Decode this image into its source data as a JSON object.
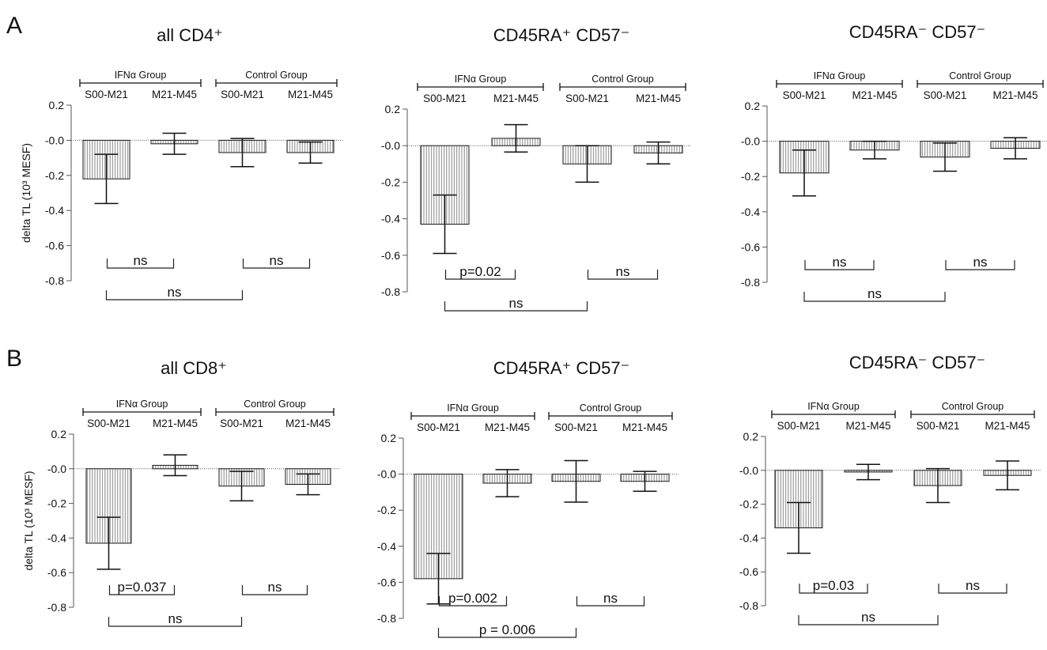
{
  "figure": {
    "panel_labels": [
      "A",
      "B"
    ],
    "y_axis_label": "delta TL (10³ MESF)",
    "group_labels": [
      "IFNα  Group",
      "Control Group"
    ],
    "categories": [
      "S00-M21",
      "M21-M45",
      "S00-M21",
      "M21-M45"
    ]
  },
  "chart_data": [
    {
      "type": "bar",
      "panel": "A",
      "title": "all CD4⁺",
      "categories": [
        "S00-M21",
        "M21-M45",
        "S00-M21",
        "M21-M45"
      ],
      "groups": [
        "IFNα  Group",
        "Control Group"
      ],
      "values": [
        -0.22,
        -0.02,
        -0.07,
        -0.07
      ],
      "errors": [
        0.14,
        0.06,
        0.08,
        0.06
      ],
      "ylabel": "delta TL (10³ MESF)",
      "ylim": [
        -0.8,
        0.2
      ],
      "yticks": [
        "0.2",
        "-0.0",
        "-0.2",
        "-0.4",
        "-0.6",
        "-0.8"
      ],
      "comparisons": [
        {
          "from": 0,
          "to": 1,
          "label": "ns",
          "level": 0
        },
        {
          "from": 2,
          "to": 3,
          "label": "ns",
          "level": 0
        },
        {
          "from": 0,
          "to": 2,
          "label": "ns",
          "level": 1
        }
      ]
    },
    {
      "type": "bar",
      "panel": "A",
      "title": "CD45RA⁺ CD57⁻",
      "categories": [
        "S00-M21",
        "M21-M45",
        "S00-M21",
        "M21-M45"
      ],
      "groups": [
        "IFNα  Group",
        "Control Group"
      ],
      "values": [
        -0.43,
        0.04,
        -0.1,
        -0.04
      ],
      "errors": [
        0.16,
        0.075,
        0.1,
        0.06
      ],
      "ylabel": "",
      "ylim": [
        -0.8,
        0.2
      ],
      "yticks": [
        "0.2",
        "-0.0",
        "-0.2",
        "-0.4",
        "-0.6",
        "-0.8"
      ],
      "comparisons": [
        {
          "from": 0,
          "to": 1,
          "label": "p=0.02",
          "level": 0
        },
        {
          "from": 2,
          "to": 3,
          "label": "ns",
          "level": 0
        },
        {
          "from": 0,
          "to": 2,
          "label": "ns",
          "level": 1
        }
      ]
    },
    {
      "type": "bar",
      "panel": "A",
      "title": "CD45RA⁻ CD57⁻",
      "categories": [
        "S00-M21",
        "M21-M45",
        "S00-M21",
        "M21-M45"
      ],
      "groups": [
        "IFNα Group",
        "Control Group"
      ],
      "values": [
        -0.18,
        -0.05,
        -0.09,
        -0.04
      ],
      "errors": [
        0.13,
        0.05,
        0.08,
        0.06
      ],
      "ylabel": "",
      "ylim": [
        -0.8,
        0.2
      ],
      "yticks": [
        "0.2",
        "-0.0",
        "-0.2",
        "-0.4",
        "-0.6",
        "-0.8"
      ],
      "comparisons": [
        {
          "from": 0,
          "to": 1,
          "label": "ns",
          "level": 0
        },
        {
          "from": 2,
          "to": 3,
          "label": "ns",
          "level": 0
        },
        {
          "from": 0,
          "to": 2,
          "label": "ns",
          "level": 1
        }
      ]
    },
    {
      "type": "bar",
      "panel": "B",
      "title": "all CD8⁺",
      "categories": [
        "S00-M21",
        "M21-M45",
        "S00-M21",
        "M21-M45"
      ],
      "groups": [
        "IFNα Group",
        "Control Group"
      ],
      "values": [
        -0.43,
        0.02,
        -0.1,
        -0.09
      ],
      "errors": [
        0.15,
        0.06,
        0.085,
        0.06
      ],
      "ylabel": "delta TL (10³ MESF)",
      "ylim": [
        -0.8,
        0.2
      ],
      "yticks": [
        "0.2",
        "-0.0",
        "-0.2",
        "-0.4",
        "-0.6",
        "-0.8"
      ],
      "comparisons": [
        {
          "from": 0,
          "to": 1,
          "label": "p=0.037",
          "level": 0
        },
        {
          "from": 2,
          "to": 3,
          "label": "ns",
          "level": 0
        },
        {
          "from": 0,
          "to": 2,
          "label": "ns",
          "level": 1
        }
      ]
    },
    {
      "type": "bar",
      "panel": "B",
      "title": "CD45RA⁺ CD57⁻",
      "categories": [
        "S00-M21",
        "M21-M45",
        "S00-M21",
        "M21-M45"
      ],
      "groups": [
        "IFNα Group",
        "Control Group"
      ],
      "values": [
        -0.58,
        -0.05,
        -0.04,
        -0.04
      ],
      "errors": [
        0.14,
        0.075,
        0.115,
        0.055
      ],
      "ylabel": "",
      "ylim": [
        -0.8,
        0.2
      ],
      "yticks": [
        "0.2",
        "-0.0",
        "-0.2",
        "-0.4",
        "-0.6",
        "-0.8"
      ],
      "comparisons": [
        {
          "from": 0,
          "to": 1,
          "label": "p=0.002",
          "level": 0
        },
        {
          "from": 2,
          "to": 3,
          "label": "ns",
          "level": 0
        },
        {
          "from": 0,
          "to": 2,
          "label": "p = 0.006",
          "level": 1
        }
      ]
    },
    {
      "type": "bar",
      "panel": "B",
      "title": "CD45RA⁻ CD57⁻",
      "categories": [
        "S00-M21",
        "M21-M45",
        "S00-M21",
        "M21-M45"
      ],
      "groups": [
        "IFNα Group",
        "Control Group"
      ],
      "values": [
        -0.34,
        -0.01,
        -0.09,
        -0.03
      ],
      "errors": [
        0.15,
        0.045,
        0.1,
        0.085
      ],
      "ylabel": "",
      "ylim": [
        -0.8,
        0.2
      ],
      "yticks": [
        "0.2",
        "-0.0",
        "-0.2",
        "-0.4",
        "-0.6",
        "-0.8"
      ],
      "comparisons": [
        {
          "from": 0,
          "to": 1,
          "label": "p=0.03",
          "level": 0
        },
        {
          "from": 2,
          "to": 3,
          "label": "ns",
          "level": 0
        },
        {
          "from": 0,
          "to": 2,
          "label": "ns",
          "level": 1
        }
      ]
    }
  ]
}
